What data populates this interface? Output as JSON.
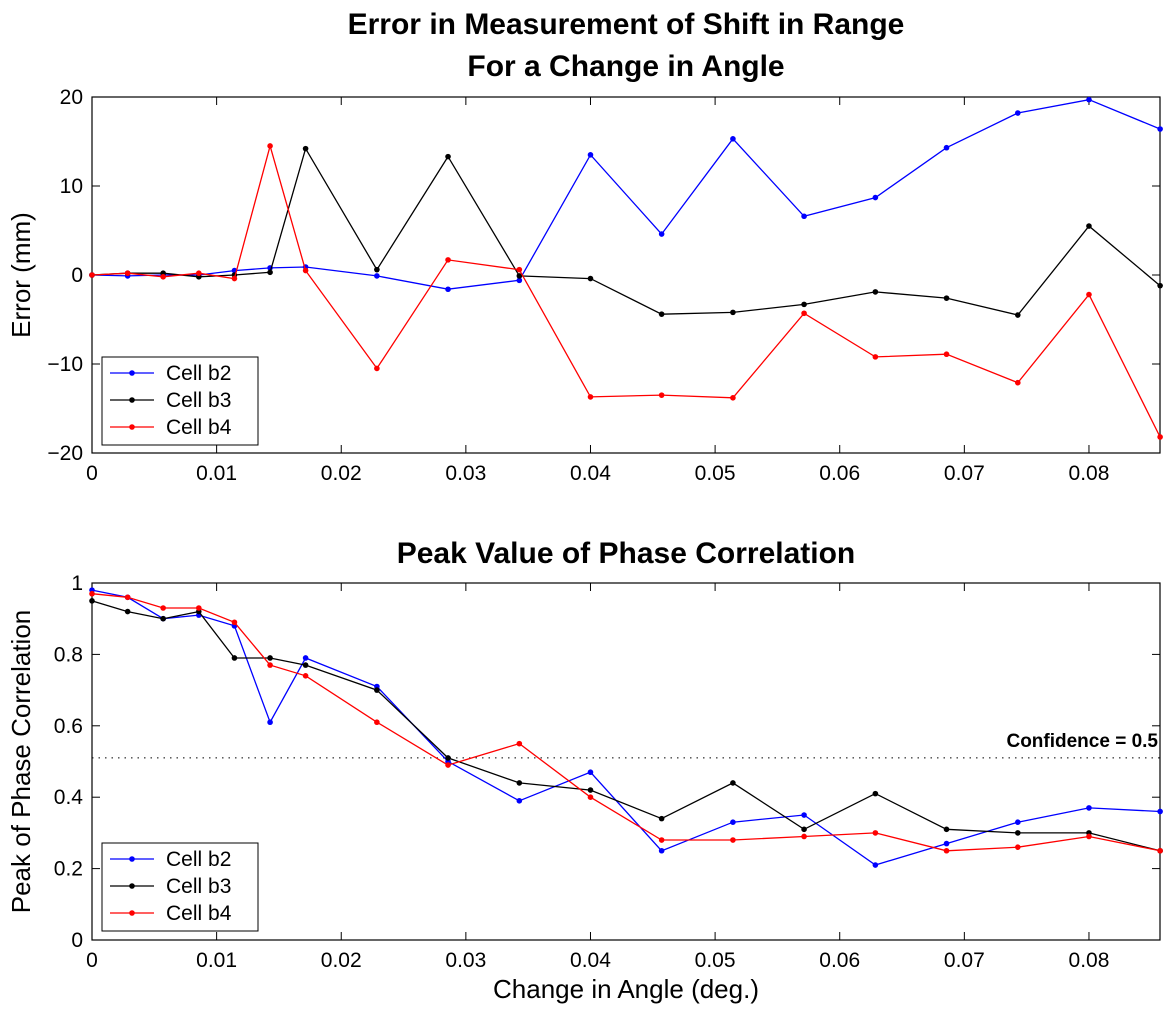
{
  "chart_data": [
    {
      "type": "line",
      "title": [
        "Error in Measurement of Shift in Range",
        "For a Change in Angle"
      ],
      "xlabel": "",
      "ylabel": "Error (mm)",
      "xlim": [
        0,
        0.0857
      ],
      "ylim": [
        -20,
        20
      ],
      "xticks": [
        0,
        0.01,
        0.02,
        0.03,
        0.04,
        0.05,
        0.06,
        0.07,
        0.08
      ],
      "xtick_labels": [
        "0",
        "0.01",
        "0.02",
        "0.03",
        "0.04",
        "0.05",
        "0.06",
        "0.07",
        "0.08"
      ],
      "yticks": [
        -20,
        -10,
        0,
        10,
        20
      ],
      "ytick_labels": [
        "−20",
        "−10",
        "0",
        "10",
        "20"
      ],
      "grid": false,
      "legend_position": "bottom-left",
      "x": [
        0,
        0.00286,
        0.00571,
        0.00857,
        0.01143,
        0.01429,
        0.01714,
        0.02286,
        0.02857,
        0.03429,
        0.04,
        0.04571,
        0.05143,
        0.05714,
        0.06286,
        0.06857,
        0.07429,
        0.08,
        0.08571
      ],
      "series": [
        {
          "name": "Cell b2",
          "color": "#0000ff",
          "values": [
            0,
            -0.1,
            0,
            0,
            0.5,
            0.8,
            0.9,
            -0.1,
            -1.6,
            -0.6,
            13.5,
            4.6,
            15.3,
            6.6,
            8.7,
            14.3,
            18.2,
            19.7,
            16.4
          ]
        },
        {
          "name": "Cell b3",
          "color": "#000000",
          "values": [
            0,
            0.2,
            0.2,
            -0.2,
            0,
            0.3,
            14.2,
            0.6,
            13.3,
            -0.1,
            -0.4,
            -4.4,
            -4.2,
            -3.3,
            -1.9,
            -2.6,
            -4.5,
            5.5,
            -1.2
          ]
        },
        {
          "name": "Cell b4",
          "color": "#ff0000",
          "values": [
            0,
            0.2,
            -0.2,
            0.2,
            -0.4,
            14.5,
            0.5,
            -10.5,
            1.7,
            0.6,
            -13.7,
            -13.5,
            -13.8,
            -4.3,
            -9.2,
            -8.9,
            -12.1,
            -2.2,
            -18.2
          ]
        }
      ]
    },
    {
      "type": "line",
      "title": [
        "Peak Value of Phase Correlation"
      ],
      "xlabel": "Change in Angle (deg.)",
      "ylabel": "Peak of Phase Correlation",
      "xlim": [
        0,
        0.0857
      ],
      "ylim": [
        0,
        1
      ],
      "xticks": [
        0,
        0.01,
        0.02,
        0.03,
        0.04,
        0.05,
        0.06,
        0.07,
        0.08
      ],
      "xtick_labels": [
        "0",
        "0.01",
        "0.02",
        "0.03",
        "0.04",
        "0.05",
        "0.06",
        "0.07",
        "0.08"
      ],
      "yticks": [
        0,
        0.2,
        0.4,
        0.6,
        0.8,
        1
      ],
      "ytick_labels": [
        "0",
        "0.2",
        "0.4",
        "0.6",
        "0.8",
        "1"
      ],
      "grid": false,
      "legend_position": "bottom-left",
      "reference_line": {
        "y": 0.51,
        "label": "Confidence = 0.5",
        "style": "dotted"
      },
      "x": [
        0,
        0.00286,
        0.00571,
        0.00857,
        0.01143,
        0.01429,
        0.01714,
        0.02286,
        0.02857,
        0.03429,
        0.04,
        0.04571,
        0.05143,
        0.05714,
        0.06286,
        0.06857,
        0.07429,
        0.08,
        0.08571
      ],
      "series": [
        {
          "name": "Cell b2",
          "color": "#0000ff",
          "values": [
            0.98,
            0.96,
            0.9,
            0.91,
            0.88,
            0.61,
            0.79,
            0.71,
            0.5,
            0.39,
            0.47,
            0.25,
            0.33,
            0.35,
            0.21,
            0.27,
            0.33,
            0.37,
            0.36
          ]
        },
        {
          "name": "Cell b3",
          "color": "#000000",
          "values": [
            0.95,
            0.92,
            0.9,
            0.92,
            0.79,
            0.79,
            0.77,
            0.7,
            0.51,
            0.44,
            0.42,
            0.34,
            0.44,
            0.31,
            0.41,
            0.31,
            0.3,
            0.3,
            0.25
          ]
        },
        {
          "name": "Cell b4",
          "color": "#ff0000",
          "values": [
            0.97,
            0.96,
            0.93,
            0.93,
            0.89,
            0.77,
            0.74,
            0.61,
            0.49,
            0.55,
            0.4,
            0.28,
            0.28,
            0.29,
            0.3,
            0.25,
            0.26,
            0.29,
            0.25
          ]
        }
      ]
    }
  ]
}
